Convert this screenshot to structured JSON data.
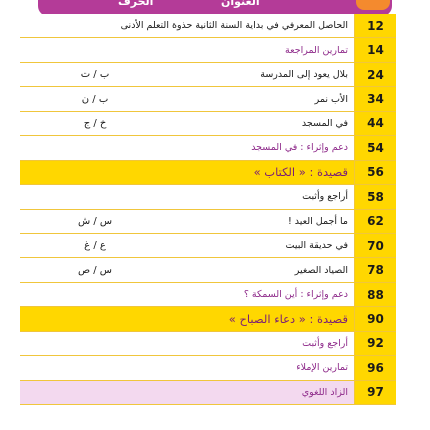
{
  "header": {
    "title_col": "العنوان",
    "letter_col": "الحرف"
  },
  "rows": [
    {
      "page": "12",
      "title": "الحاصل المعرفي في بداية السنة الثانية حذوة التعلم الأدنى",
      "letters": "",
      "style": "plain"
    },
    {
      "page": "14",
      "title": "تمارين المراجعة",
      "letters": "",
      "style": "purple"
    },
    {
      "page": "24",
      "title": "بلال يعود إلى المدرسة",
      "letters": "ب / ت",
      "style": "plain"
    },
    {
      "page": "34",
      "title": "الأب نمر",
      "letters": "ب / ن",
      "style": "plain"
    },
    {
      "page": "44",
      "title": "في المسجد",
      "letters": "خ / ج",
      "style": "plain"
    },
    {
      "page": "54",
      "title": "دعم وإثراء : في المسجد",
      "letters": "",
      "style": "purple"
    },
    {
      "page": "56",
      "title": "قصيدة : « الكتاب »",
      "letters": "",
      "style": "hl"
    },
    {
      "page": "58",
      "title": "أراجع وأثبت",
      "letters": "",
      "style": "plain"
    },
    {
      "page": "62",
      "title": "ما أجمل العيد !",
      "letters": "س / ش",
      "style": "plain"
    },
    {
      "page": "70",
      "title": "في حديقة البيت",
      "letters": "ع / غ",
      "style": "plain"
    },
    {
      "page": "78",
      "title": "الصياد الصغير",
      "letters": "س / ص",
      "style": "plain"
    },
    {
      "page": "88",
      "title": "دعم وإثراء : أين السمكة ؟",
      "letters": "",
      "style": "purple"
    },
    {
      "page": "90",
      "title": "قصيدة : « دعاء الصباح »",
      "letters": "",
      "style": "hl"
    },
    {
      "page": "92",
      "title": "أراجع وأثبت",
      "letters": "",
      "style": "purple"
    },
    {
      "page": "96",
      "title": "تمارين الإملاء",
      "letters": "",
      "style": "purple"
    },
    {
      "page": "97",
      "title": "الزاد اللغوي",
      "letters": "",
      "style": "lav"
    }
  ]
}
